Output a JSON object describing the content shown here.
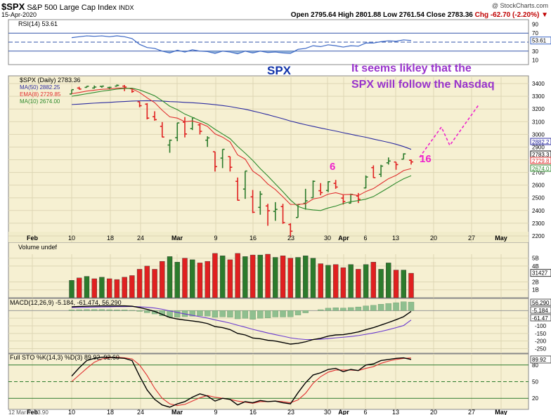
{
  "header": {
    "symbol": "$SPX",
    "name": "S&P 500 Large Cap Index",
    "exchange": "INDX",
    "date": "15-Apr-2020",
    "watermark": "@ StockCharts.com",
    "ohlc": "Open 2795.64  High 2801.88  Low 2761.54  Close 2783.36",
    "change": "Chg -62.70 (-2.20%) ▼"
  },
  "annotations": {
    "spx_label": "SPX",
    "comment_line1": "It seems likley that the",
    "comment_line2": "SPX will follow the Nasdaq",
    "marker_6": "6",
    "marker_16": "16",
    "footer_readout": "12 Mar Y:-23.90"
  },
  "colors": {
    "panel_bg": "#f6f0d2",
    "bull": "#2c7b2c",
    "bear": "#e02020",
    "ma50": "#2b2ba0",
    "ema8": "#e03030",
    "ma10": "#2c8a2c",
    "annotation_purple": "#9933cc",
    "annotation_magenta": "#ee22cc",
    "spx_blue": "#1133aa"
  },
  "chart_data": {
    "type": "candlestick",
    "title": "$SPX S&P 500 Large Cap Index INDX",
    "x_tick_labels": [
      "Feb",
      "10",
      "18",
      "24",
      "Mar",
      "9",
      "16",
      "23",
      "30",
      "Apr",
      "6",
      "13",
      "20",
      "27",
      "May"
    ],
    "price": {
      "label": "$SPX (Daily) 2783.36",
      "ylim": [
        2150,
        3450
      ],
      "y_ticks": [
        2200,
        2300,
        2400,
        2500,
        2600,
        2700,
        2800,
        2900,
        3000,
        3100,
        3200,
        3300,
        3400
      ],
      "y_tick_labels": [
        "2200",
        "2300",
        "2400",
        "2500",
        "2600",
        "2700",
        "2800",
        "2900",
        "3000",
        "3100",
        "3200",
        "3300",
        "3400"
      ],
      "right_value_tags": [
        "2882.2",
        "2783.3",
        "2729.8",
        "2674.0"
      ],
      "candles": [
        {
          "date": "2020-02-10",
          "o": 3318,
          "h": 3352,
          "l": 3317,
          "c": 3352
        },
        {
          "date": "2020-02-11",
          "o": 3365,
          "h": 3375,
          "l": 3352,
          "c": 3357
        },
        {
          "date": "2020-02-12",
          "o": 3370,
          "h": 3381,
          "l": 3369,
          "c": 3379
        },
        {
          "date": "2020-02-13",
          "o": 3365,
          "h": 3385,
          "l": 3360,
          "c": 3373
        },
        {
          "date": "2020-02-14",
          "o": 3378,
          "h": 3380,
          "l": 3367,
          "c": 3380
        },
        {
          "date": "2020-02-18",
          "o": 3369,
          "h": 3375,
          "l": 3355,
          "c": 3370
        },
        {
          "date": "2020-02-19",
          "o": 3380,
          "h": 3393,
          "l": 3378,
          "c": 3386
        },
        {
          "date": "2020-02-20",
          "o": 3380,
          "h": 3389,
          "l": 3341,
          "c": 3373
        },
        {
          "date": "2020-02-21",
          "o": 3360,
          "h": 3360,
          "l": 3328,
          "c": 3338
        },
        {
          "date": "2020-02-24",
          "o": 3257,
          "h": 3259,
          "l": 3214,
          "c": 3226
        },
        {
          "date": "2020-02-25",
          "o": 3238,
          "h": 3246,
          "l": 3118,
          "c": 3128
        },
        {
          "date": "2020-02-26",
          "o": 3139,
          "h": 3182,
          "l": 3108,
          "c": 3116
        },
        {
          "date": "2020-02-27",
          "o": 3063,
          "h": 3097,
          "l": 2977,
          "c": 2979
        },
        {
          "date": "2020-02-28",
          "o": 2916,
          "h": 2959,
          "l": 2855,
          "c": 2954
        },
        {
          "date": "2020-03-02",
          "o": 2974,
          "h": 3091,
          "l": 2946,
          "c": 3090
        },
        {
          "date": "2020-03-03",
          "o": 3096,
          "h": 3136,
          "l": 2976,
          "c": 3003
        },
        {
          "date": "2020-03-04",
          "o": 3045,
          "h": 3130,
          "l": 3034,
          "c": 3130
        },
        {
          "date": "2020-03-05",
          "o": 3075,
          "h": 3083,
          "l": 2999,
          "c": 3024
        },
        {
          "date": "2020-03-06",
          "o": 2954,
          "h": 2985,
          "l": 2901,
          "c": 2972
        },
        {
          "date": "2020-03-09",
          "o": 2863,
          "h": 2863,
          "l": 2707,
          "c": 2746
        },
        {
          "date": "2020-03-10",
          "o": 2813,
          "h": 2882,
          "l": 2734,
          "c": 2882
        },
        {
          "date": "2020-03-11",
          "o": 2825,
          "h": 2825,
          "l": 2707,
          "c": 2741
        },
        {
          "date": "2020-03-12",
          "o": 2630,
          "h": 2660,
          "l": 2478,
          "c": 2481
        },
        {
          "date": "2020-03-13",
          "o": 2569,
          "h": 2711,
          "l": 2492,
          "c": 2711
        },
        {
          "date": "2020-03-16",
          "o": 2508,
          "h": 2562,
          "l": 2380,
          "c": 2386
        },
        {
          "date": "2020-03-17",
          "o": 2425,
          "h": 2553,
          "l": 2367,
          "c": 2529
        },
        {
          "date": "2020-03-18",
          "o": 2436,
          "h": 2453,
          "l": 2280,
          "c": 2398
        },
        {
          "date": "2020-03-19",
          "o": 2393,
          "h": 2466,
          "l": 2319,
          "c": 2409
        },
        {
          "date": "2020-03-20",
          "o": 2431,
          "h": 2453,
          "l": 2295,
          "c": 2305
        },
        {
          "date": "2020-03-23",
          "o": 2290,
          "h": 2300,
          "l": 2192,
          "c": 2237
        },
        {
          "date": "2020-03-24",
          "o": 2345,
          "h": 2450,
          "l": 2345,
          "c": 2448
        },
        {
          "date": "2020-03-25",
          "o": 2457,
          "h": 2571,
          "l": 2407,
          "c": 2476
        },
        {
          "date": "2020-03-26",
          "o": 2501,
          "h": 2637,
          "l": 2500,
          "c": 2630
        },
        {
          "date": "2020-03-27",
          "o": 2556,
          "h": 2616,
          "l": 2520,
          "c": 2541
        },
        {
          "date": "2020-03-30",
          "o": 2558,
          "h": 2631,
          "l": 2545,
          "c": 2627
        },
        {
          "date": "2020-03-31",
          "o": 2614,
          "h": 2641,
          "l": 2571,
          "c": 2585
        },
        {
          "date": "2020-04-01",
          "o": 2498,
          "h": 2522,
          "l": 2447,
          "c": 2471
        },
        {
          "date": "2020-04-02",
          "o": 2458,
          "h": 2533,
          "l": 2456,
          "c": 2527
        },
        {
          "date": "2020-04-03",
          "o": 2514,
          "h": 2538,
          "l": 2459,
          "c": 2489
        },
        {
          "date": "2020-04-06",
          "o": 2578,
          "h": 2676,
          "l": 2575,
          "c": 2664
        },
        {
          "date": "2020-04-07",
          "o": 2738,
          "h": 2756,
          "l": 2657,
          "c": 2659
        },
        {
          "date": "2020-04-08",
          "o": 2685,
          "h": 2760,
          "l": 2664,
          "c": 2750
        },
        {
          "date": "2020-04-09",
          "o": 2776,
          "h": 2818,
          "l": 2762,
          "c": 2790
        },
        {
          "date": "2020-04-13",
          "o": 2782,
          "h": 2782,
          "l": 2721,
          "c": 2762
        },
        {
          "date": "2020-04-14",
          "o": 2805,
          "h": 2851,
          "l": 2805,
          "c": 2846
        },
        {
          "date": "2020-04-15",
          "o": 2796,
          "h": 2802,
          "l": 2762,
          "c": 2783
        }
      ],
      "overlays": [
        {
          "name": "MA(50)",
          "legend": "MA(50) 2882.25",
          "value": 2882.25,
          "values": [
            3235,
            3238,
            3242,
            3246,
            3249,
            3252,
            3256,
            3259,
            3262,
            3264,
            3265,
            3264,
            3262,
            3258,
            3256,
            3252,
            3249,
            3245,
            3240,
            3234,
            3227,
            3219,
            3208,
            3198,
            3184,
            3170,
            3155,
            3139,
            3123,
            3105,
            3090,
            3076,
            3063,
            3050,
            3038,
            3026,
            3013,
            3001,
            2988,
            2977,
            2963,
            2950,
            2937,
            2922,
            2904,
            2882
          ]
        },
        {
          "name": "EMA(8)",
          "legend": "EMA(8) 2729.85",
          "value": 2729.85,
          "values": [
            3320,
            3330,
            3341,
            3348,
            3355,
            3358,
            3364,
            3366,
            3359,
            3330,
            3288,
            3250,
            3190,
            3138,
            3128,
            3100,
            3106,
            3088,
            3063,
            3004,
            2978,
            2940,
            2838,
            2805,
            2711,
            2670,
            2609,
            2565,
            2508,
            2448,
            2448,
            2453,
            2491,
            2502,
            2529,
            2540,
            2525,
            2527,
            2518,
            2550,
            2573,
            2612,
            2651,
            2677,
            2715,
            2730
          ]
        },
        {
          "name": "MA(10)",
          "legend": "MA(10) 2674.00",
          "value": 2674.0,
          "values": [
            3300,
            3310,
            3320,
            3330,
            3340,
            3348,
            3356,
            3362,
            3364,
            3350,
            3328,
            3304,
            3265,
            3222,
            3195,
            3160,
            3135,
            3108,
            3081,
            3040,
            3003,
            2966,
            2905,
            2852,
            2795,
            2730,
            2672,
            2610,
            2548,
            2483,
            2432,
            2412,
            2405,
            2400,
            2420,
            2435,
            2455,
            2470,
            2478,
            2490,
            2510,
            2545,
            2580,
            2617,
            2650,
            2674
          ]
        }
      ],
      "projection_label": "It seems likley that the SPX will follow the Nasdaq"
    },
    "rsi": {
      "label": "RSI(14) 53.61",
      "value": 53.61,
      "ylim": [
        0,
        100
      ],
      "y_ticks": [
        10,
        30,
        50,
        70,
        90
      ],
      "y_tick_labels": [
        "10",
        "30",
        "50",
        "70",
        "90"
      ],
      "right_value_tag": "53.61",
      "values": [
        60,
        62,
        64,
        63,
        64,
        62,
        64,
        62,
        58,
        45,
        38,
        36,
        30,
        26,
        32,
        28,
        33,
        30,
        29,
        25,
        30,
        28,
        24,
        30,
        26,
        30,
        27,
        28,
        26,
        25,
        34,
        36,
        42,
        40,
        44,
        42,
        39,
        42,
        41,
        48,
        48,
        51,
        53,
        52,
        55,
        53.61
      ]
    },
    "volume": {
      "label": "Volume undef",
      "ylim": [
        0,
        5.5
      ],
      "unit": "B",
      "y_ticks": [
        1,
        2,
        4,
        5
      ],
      "y_tick_labels": [
        "1B",
        "2B",
        "4B",
        "5B"
      ],
      "right_value_tag": "31427",
      "values": [
        2.2,
        2.5,
        2.7,
        2.4,
        2.6,
        2.4,
        2.3,
        2.6,
        2.8,
        3.6,
        4.0,
        3.6,
        4.6,
        5.2,
        4.5,
        5.0,
        4.8,
        4.4,
        4.6,
        5.6,
        5.3,
        4.8,
        5.6,
        5.2,
        5.4,
        5.4,
        5.5,
        5.1,
        5.3,
        5.0,
        5.1,
        5.3,
        5.0,
        4.3,
        4.1,
        4.2,
        3.8,
        4.2,
        3.6,
        4.2,
        4.5,
        3.6,
        4.4,
        3.5,
        3.5,
        3.1
      ],
      "colors": [
        "bull",
        "bear",
        "bull",
        "bear",
        "bull",
        "bear",
        "bear",
        "bear",
        "bear",
        "bear",
        "bear",
        "bear",
        "bear",
        "bull",
        "bull",
        "bear",
        "bull",
        "bear",
        "bear",
        "bear",
        "bull",
        "bear",
        "bear",
        "bull",
        "bear",
        "bull",
        "bear",
        "bull",
        "bear",
        "bear",
        "bull",
        "bull",
        "bull",
        "bear",
        "bull",
        "bear",
        "bear",
        "bull",
        "bear",
        "bull",
        "bear",
        "bull",
        "bull",
        "bear",
        "bull",
        "bear"
      ]
    },
    "macd": {
      "label": "MACD(12,26,9) -5.184, -61.474, 56.290",
      "ylim": [
        -280,
        80
      ],
      "y_ticks": [
        -250,
        -200,
        -150,
        -100,
        -50
      ],
      "y_tick_labels": [
        "-250",
        "-200",
        "-150",
        "-100",
        "-50"
      ],
      "right_value_tags": [
        "56.290",
        "-5.184",
        "-61.47"
      ],
      "macd": [
        25,
        27,
        29,
        30,
        31,
        31,
        31,
        31,
        29,
        20,
        8,
        -5,
        -25,
        -45,
        -55,
        -62,
        -68,
        -75,
        -85,
        -105,
        -112,
        -125,
        -150,
        -160,
        -180,
        -185,
        -195,
        -200,
        -210,
        -220,
        -215,
        -205,
        -190,
        -182,
        -168,
        -160,
        -158,
        -150,
        -140,
        -125,
        -112,
        -95,
        -78,
        -60,
        -40,
        -5.184
      ],
      "signal": [
        20,
        21,
        22,
        23,
        24,
        25,
        26,
        26,
        27,
        25,
        22,
        17,
        9,
        -2,
        -12,
        -22,
        -31,
        -40,
        -49,
        -61,
        -71,
        -82,
        -96,
        -109,
        -123,
        -135,
        -147,
        -158,
        -168,
        -179,
        -186,
        -190,
        -190,
        -188,
        -184,
        -179,
        -175,
        -170,
        -164,
        -156,
        -147,
        -137,
        -125,
        -112,
        -98,
        -61.474
      ],
      "histogram": [
        5,
        6,
        7,
        7,
        7,
        6,
        5,
        5,
        2,
        -5,
        -14,
        -22,
        -34,
        -43,
        -43,
        -40,
        -37,
        -35,
        -36,
        -44,
        -41,
        -43,
        -54,
        -51,
        -57,
        -50,
        -48,
        -42,
        -42,
        -41,
        -29,
        -15,
        0,
        6,
        16,
        19,
        17,
        20,
        24,
        31,
        35,
        42,
        47,
        52,
        58,
        56.29
      ]
    },
    "stochastic": {
      "label": "Full STO %K(14,3) %D(3) 89.92, 92.60",
      "ylim": [
        0,
        100
      ],
      "y_ticks": [
        20,
        50,
        80
      ],
      "y_tick_labels": [
        "20",
        "50",
        "80"
      ],
      "right_value_tag": "89.92",
      "k": [
        60,
        75,
        88,
        92,
        94,
        94,
        93,
        92,
        88,
        60,
        35,
        18,
        8,
        4,
        10,
        14,
        22,
        28,
        24,
        15,
        20,
        18,
        8,
        14,
        12,
        16,
        14,
        15,
        12,
        10,
        30,
        48,
        62,
        66,
        72,
        74,
        68,
        72,
        70,
        80,
        82,
        88,
        90,
        92,
        93,
        89.92
      ],
      "d": [
        50,
        62,
        74,
        85,
        91,
        93,
        94,
        93,
        91,
        80,
        61,
        38,
        20,
        10,
        7,
        9,
        15,
        21,
        25,
        22,
        20,
        18,
        15,
        13,
        11,
        14,
        14,
        15,
        14,
        12,
        17,
        29,
        47,
        59,
        67,
        71,
        71,
        71,
        70,
        74,
        77,
        83,
        87,
        90,
        92,
        92.6
      ]
    }
  }
}
